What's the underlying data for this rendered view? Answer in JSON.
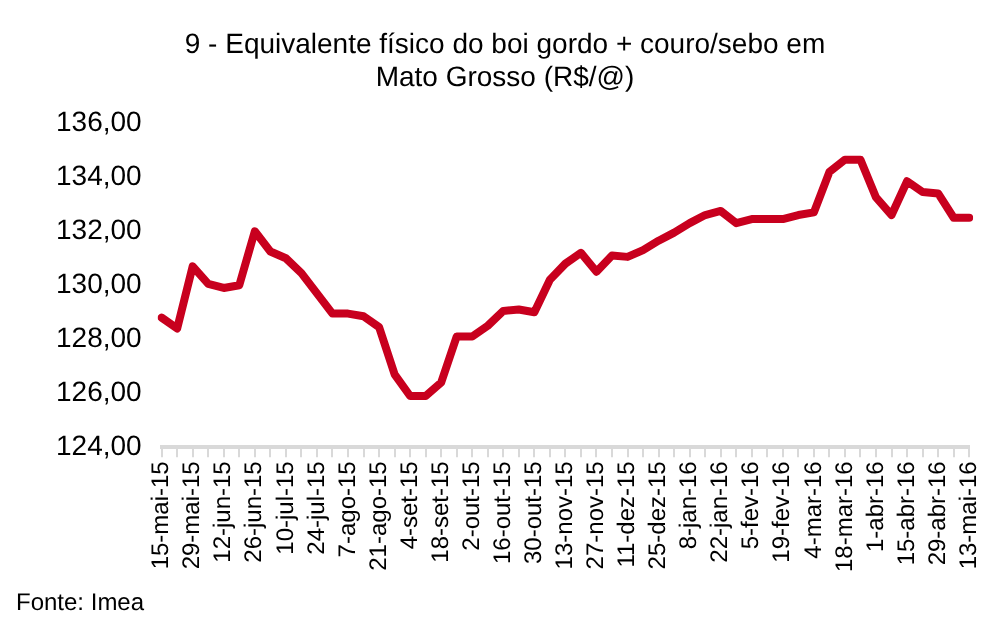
{
  "chart_data": {
    "type": "line",
    "title": "9 - Equivalente físico do boi gordo + couro/sebo em Mato Grosso (R$/@)",
    "categories": [
      "15-mai-15",
      null,
      "29-mai-15",
      null,
      "12-jun-15",
      null,
      "26-jun-15",
      null,
      "10-jul-15",
      null,
      "24-jul-15",
      null,
      "7-ago-15",
      null,
      "21-ago-15",
      null,
      "4-set-15",
      null,
      "18-set-15",
      null,
      "2-out-15",
      null,
      "16-out-15",
      null,
      "30-out-15",
      null,
      "13-nov-15",
      null,
      "27-nov-15",
      null,
      "11-dez-15",
      null,
      "25-dez-15",
      null,
      "8-jan-16",
      null,
      "22-jan-16",
      null,
      "5-fev-16",
      null,
      "19-fev-16",
      null,
      "4-mar-16",
      null,
      "18-mar-16",
      null,
      "1-abr-16",
      null,
      "15-abr-16",
      null,
      "29-abr-16",
      null,
      "13-mai-16"
    ],
    "series": [
      {
        "color": "#c8001e",
        "values": [
          128.8,
          128.4,
          130.7,
          130.05,
          129.9,
          130.0,
          132.0,
          131.25,
          131.0,
          130.45,
          129.7,
          128.95,
          128.95,
          128.85,
          128.45,
          126.7,
          125.9,
          125.9,
          126.4,
          128.1,
          128.1,
          128.5,
          129.05,
          129.1,
          129.0,
          130.2,
          130.8,
          131.2,
          130.5,
          131.1,
          131.05,
          131.3,
          131.65,
          131.95,
          132.3,
          132.6,
          132.75,
          132.3,
          132.45,
          132.45,
          132.45,
          132.6,
          132.7,
          134.2,
          134.65,
          134.65,
          133.25,
          132.6,
          133.85,
          133.45,
          133.4,
          132.5,
          132.5
        ]
      }
    ],
    "ylim": [
      124,
      136
    ],
    "yticks": [
      {
        "value": 124,
        "label": "124,00"
      },
      {
        "value": 126,
        "label": "126,00"
      },
      {
        "value": 128,
        "label": "128,00"
      },
      {
        "value": 130,
        "label": "130,00"
      },
      {
        "value": 132,
        "label": "132,00"
      },
      {
        "value": 134,
        "label": "134,00"
      },
      {
        "value": 136,
        "label": "136,00"
      }
    ],
    "grid": false,
    "legend": false,
    "marker": "none",
    "line_style": "solid",
    "annotations": [
      "Fonte: Imea"
    ]
  }
}
